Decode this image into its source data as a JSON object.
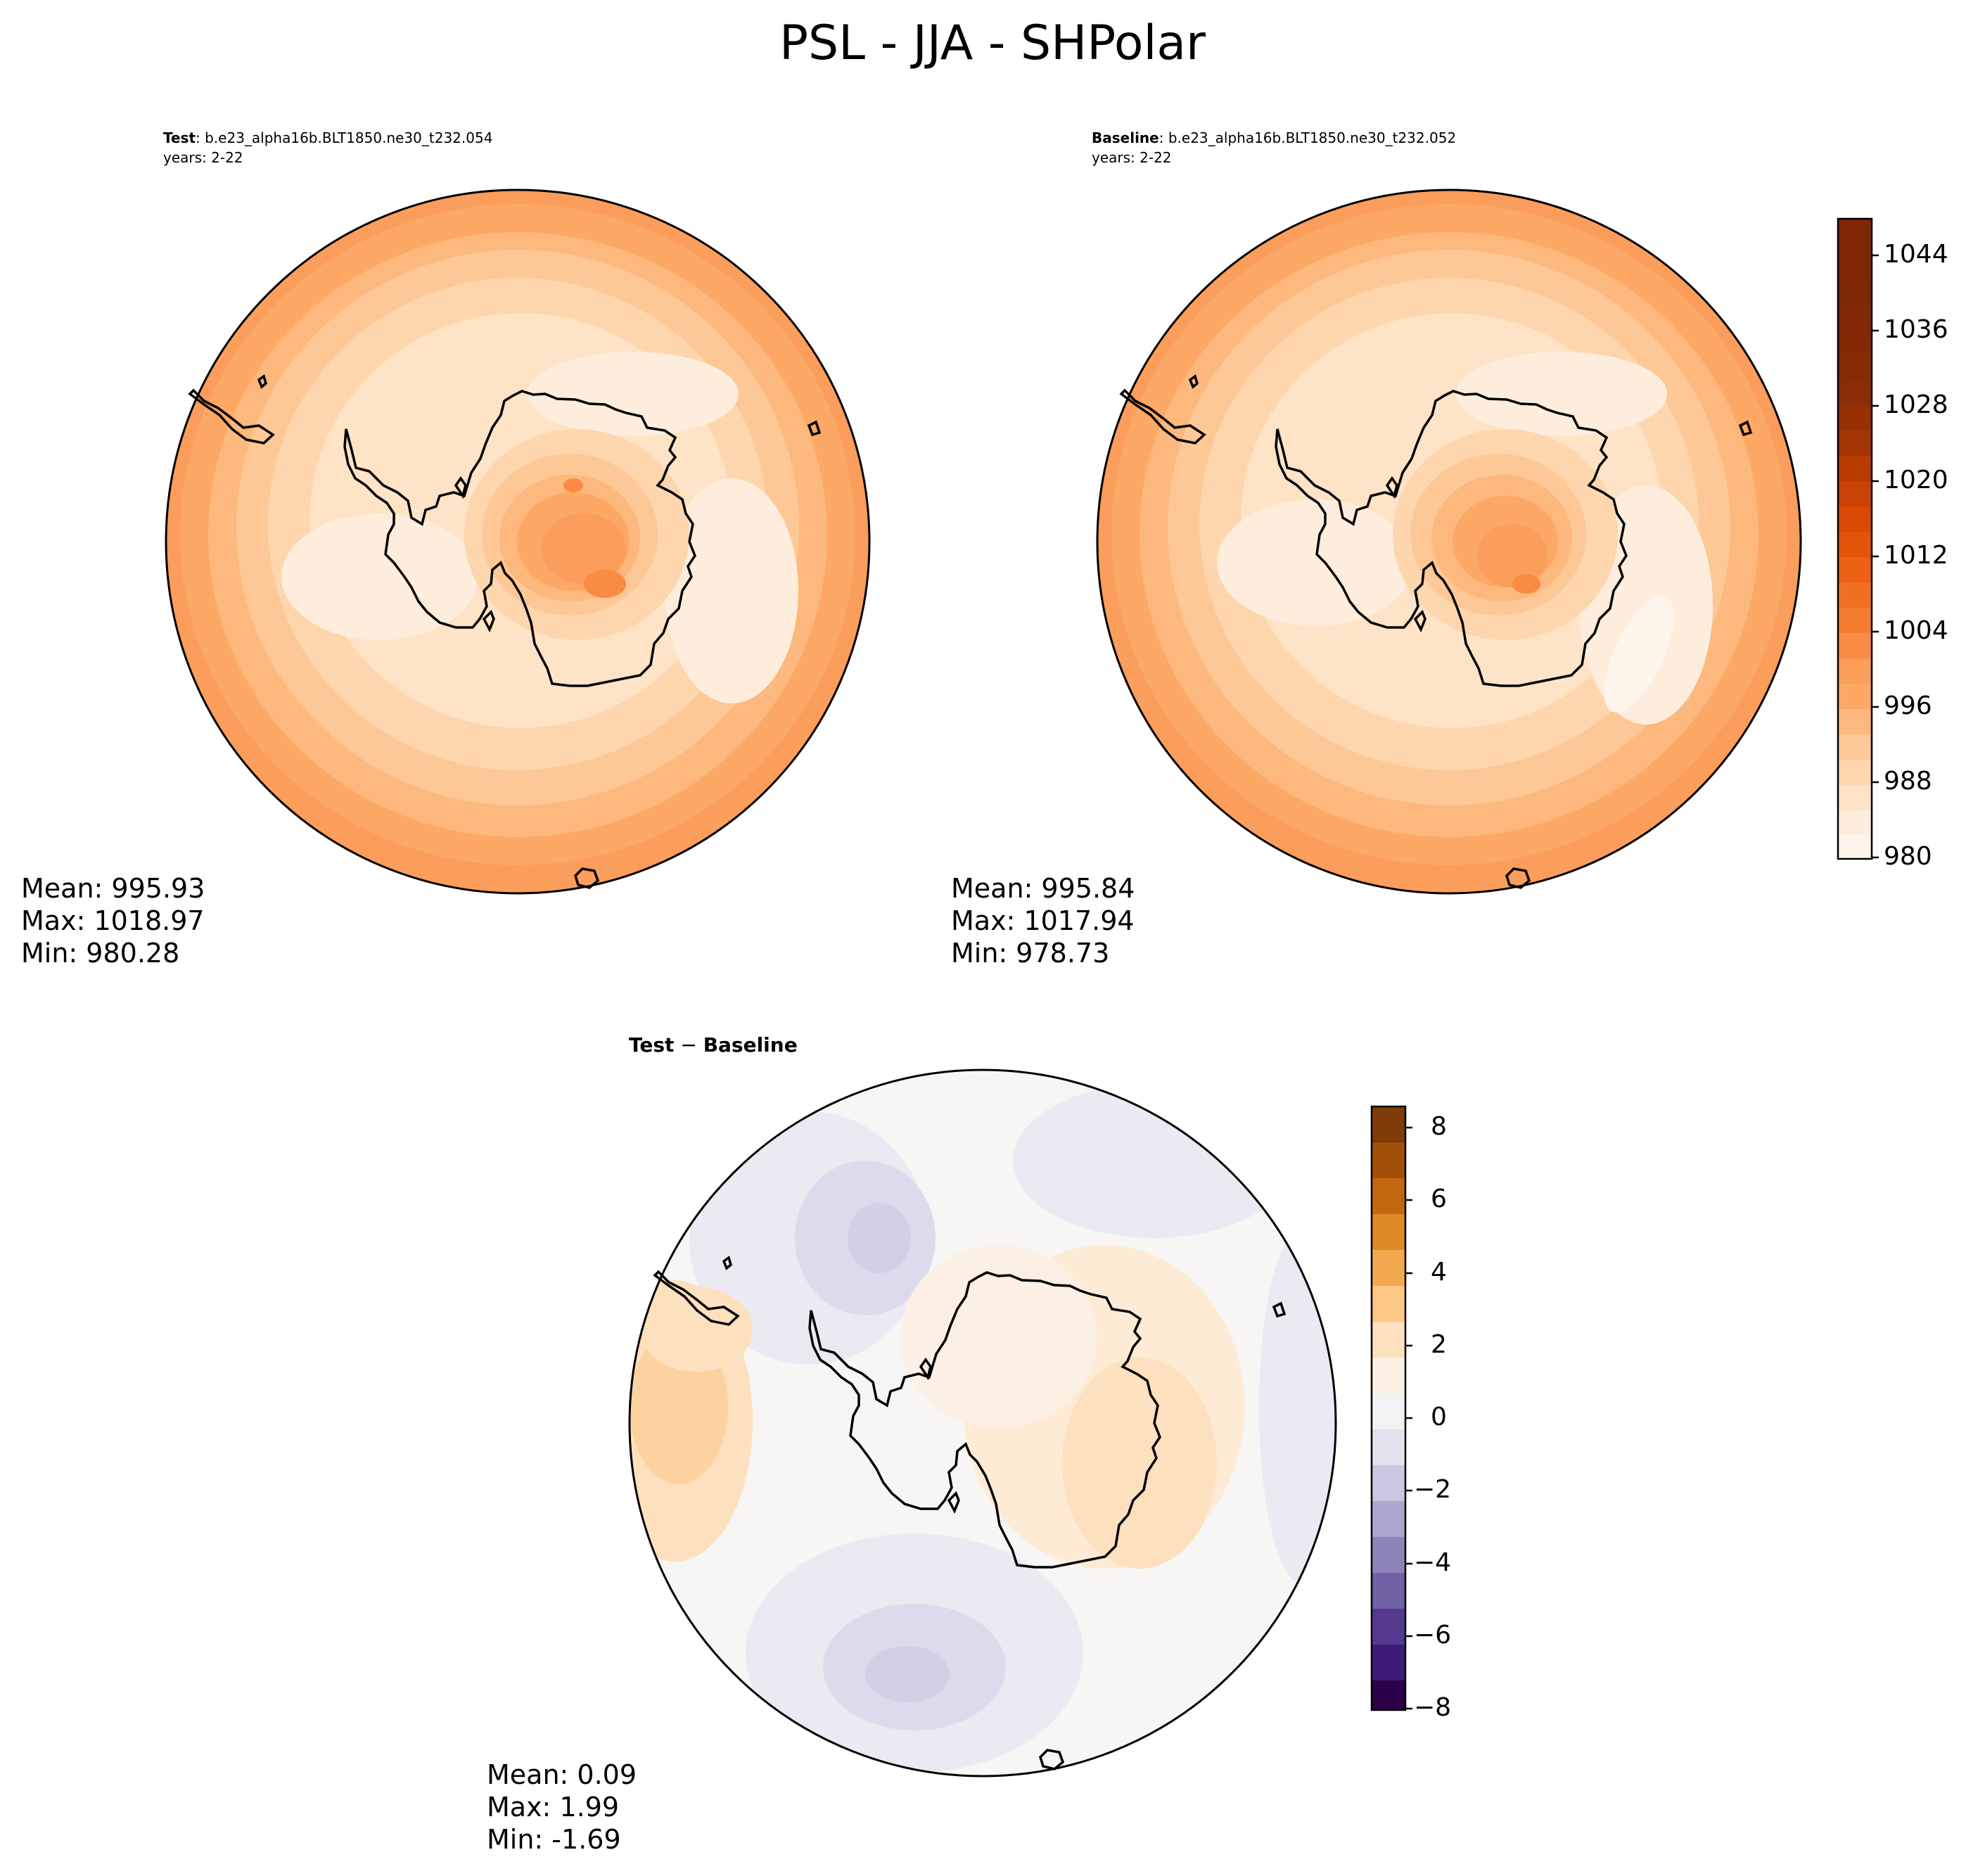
{
  "title": "PSL - JJA - SHPolar",
  "panels": [
    {
      "id": "test",
      "label_bold": "Test",
      "label_rest": ": b.e23_alpha16b.BLT1850.ne30_t232.054",
      "years": "years: 2-22",
      "stats": {
        "mean": "Mean: 995.93",
        "max": "Max: 1018.97",
        "min": "Min: 980.28"
      }
    },
    {
      "id": "baseline",
      "label_bold": "Baseline",
      "label_rest": ": b.e23_alpha16b.BLT1850.ne30_t232.052",
      "years": "years: 2-22",
      "stats": {
        "mean": "Mean: 995.84",
        "max": "Max: 1017.94",
        "min": "Min: 978.73"
      }
    },
    {
      "id": "difference",
      "label_bold": "Test",
      "label_rest": " − ",
      "label_bold2": "Baseline",
      "stats": {
        "mean": "Mean:  0.09",
        "max": "Max:  1.99",
        "min": "Min: -1.69"
      }
    }
  ],
  "colorbars": {
    "absolute": {
      "colormap": "Oranges",
      "ticks": [
        "980",
        "988",
        "996",
        "1004",
        "1012",
        "1020",
        "1028",
        "1036",
        "1044"
      ],
      "range": [
        980,
        1048
      ]
    },
    "difference": {
      "colormap": "PuOr_r",
      "ticks": [
        "8",
        "6",
        "4",
        "2",
        "0",
        "−2",
        "−4",
        "−6",
        "−8"
      ],
      "range": [
        -9,
        8.5
      ]
    }
  },
  "chart_data": [
    {
      "type": "heatmap",
      "projection": "South Polar Stereographic",
      "variable": "PSL",
      "season": "JJA",
      "title": "Test : b.e23_alpha16b.BLT1850.ne30_t232.054",
      "mean": 995.93,
      "max": 1018.97,
      "min": 980.28,
      "color_range": [
        980,
        1048
      ]
    },
    {
      "type": "heatmap",
      "projection": "South Polar Stereographic",
      "variable": "PSL",
      "season": "JJA",
      "title": "Baseline : b.e23_alpha16b.BLT1850.ne30_t232.052",
      "mean": 995.84,
      "max": 1017.94,
      "min": 978.73,
      "color_range": [
        980,
        1048
      ]
    },
    {
      "type": "heatmap",
      "projection": "South Polar Stereographic",
      "variable": "PSL",
      "season": "JJA",
      "title": "Test − Baseline",
      "mean": 0.09,
      "max": 1.99,
      "min": -1.69,
      "color_range": [
        -9,
        8.5
      ]
    }
  ]
}
